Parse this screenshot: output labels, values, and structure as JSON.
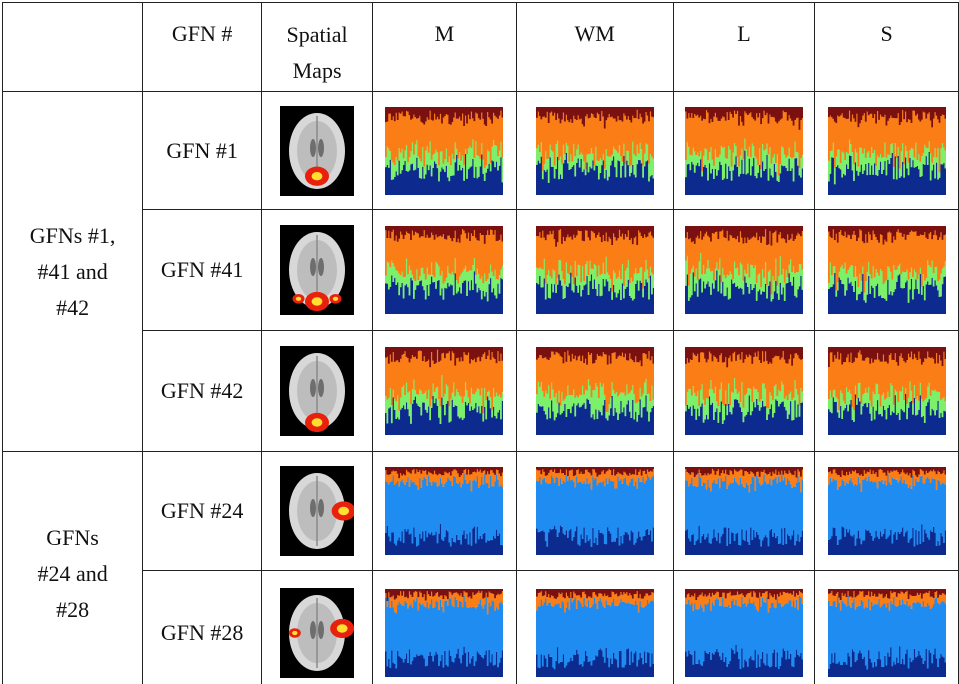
{
  "header": {
    "gfn": "GFN #",
    "spatial_maps": [
      "Spatial",
      "Maps"
    ],
    "conditions": [
      "M",
      "WM",
      "L",
      "S"
    ]
  },
  "groups": [
    {
      "label_lines": [
        "GFNs #1,",
        "#41 and",
        "#42"
      ],
      "rows": [
        "GFN #1",
        "GFN #41",
        "GFN #42"
      ]
    },
    {
      "label_lines": [
        "GFNs",
        "#24 and",
        "#28"
      ],
      "rows": [
        "GFN #24",
        "GFN #28"
      ]
    }
  ]
}
